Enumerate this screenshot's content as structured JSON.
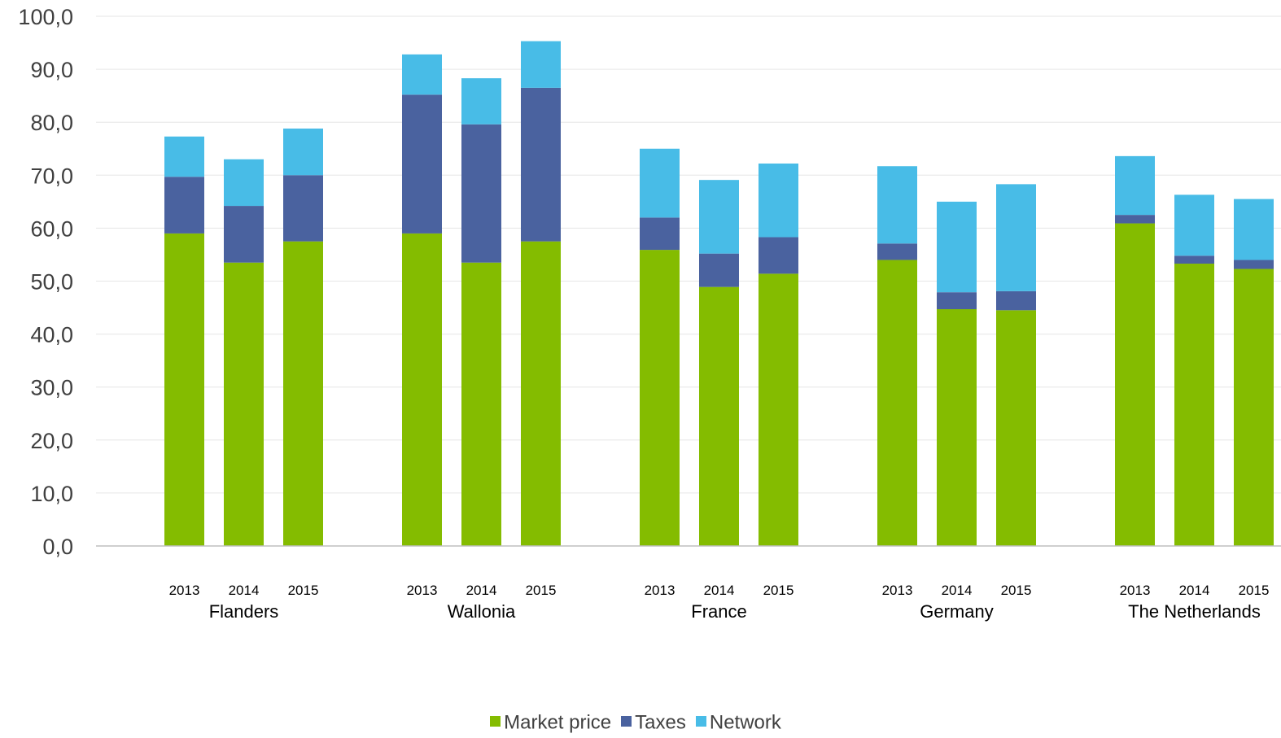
{
  "chart_data": {
    "type": "bar",
    "stacked": true,
    "title": "",
    "xlabel": "",
    "ylabel": "",
    "ylim": [
      0,
      100
    ],
    "yticks": [
      "0,0",
      "10,0",
      "20,0",
      "30,0",
      "40,0",
      "50,0",
      "60,0",
      "70,0",
      "80,0",
      "90,0",
      "100,0"
    ],
    "grid": true,
    "legend_position": "bottom",
    "groups": [
      {
        "name": "Flanders",
        "years": [
          "2013",
          "2014",
          "2015"
        ]
      },
      {
        "name": "Wallonia",
        "years": [
          "2013",
          "2014",
          "2015"
        ]
      },
      {
        "name": "France",
        "years": [
          "2013",
          "2014",
          "2015"
        ]
      },
      {
        "name": "Germany",
        "years": [
          "2013",
          "2014",
          "2015"
        ]
      },
      {
        "name": "The Netherlands",
        "years": [
          "2013",
          "2014",
          "2015"
        ]
      }
    ],
    "series": [
      {
        "name": "Market price",
        "color": "#84BC00",
        "values": [
          [
            59.0,
            53.5,
            57.5
          ],
          [
            59.0,
            53.5,
            57.5
          ],
          [
            55.9,
            48.9,
            51.4
          ],
          [
            54.0,
            44.7,
            44.5
          ],
          [
            60.9,
            53.3,
            52.3
          ]
        ]
      },
      {
        "name": "Taxes",
        "color": "#4A629F",
        "values": [
          [
            10.7,
            10.7,
            12.5
          ],
          [
            26.2,
            26.1,
            29.0
          ],
          [
            6.1,
            6.3,
            6.9
          ],
          [
            3.1,
            3.2,
            3.6
          ],
          [
            1.6,
            1.5,
            1.7
          ]
        ]
      },
      {
        "name": "Network",
        "color": "#48BCE7",
        "values": [
          [
            7.6,
            8.8,
            8.8
          ],
          [
            7.6,
            8.7,
            8.8
          ],
          [
            13.0,
            13.9,
            13.9
          ],
          [
            14.6,
            17.1,
            20.2
          ],
          [
            11.1,
            11.5,
            11.5
          ]
        ]
      }
    ]
  }
}
